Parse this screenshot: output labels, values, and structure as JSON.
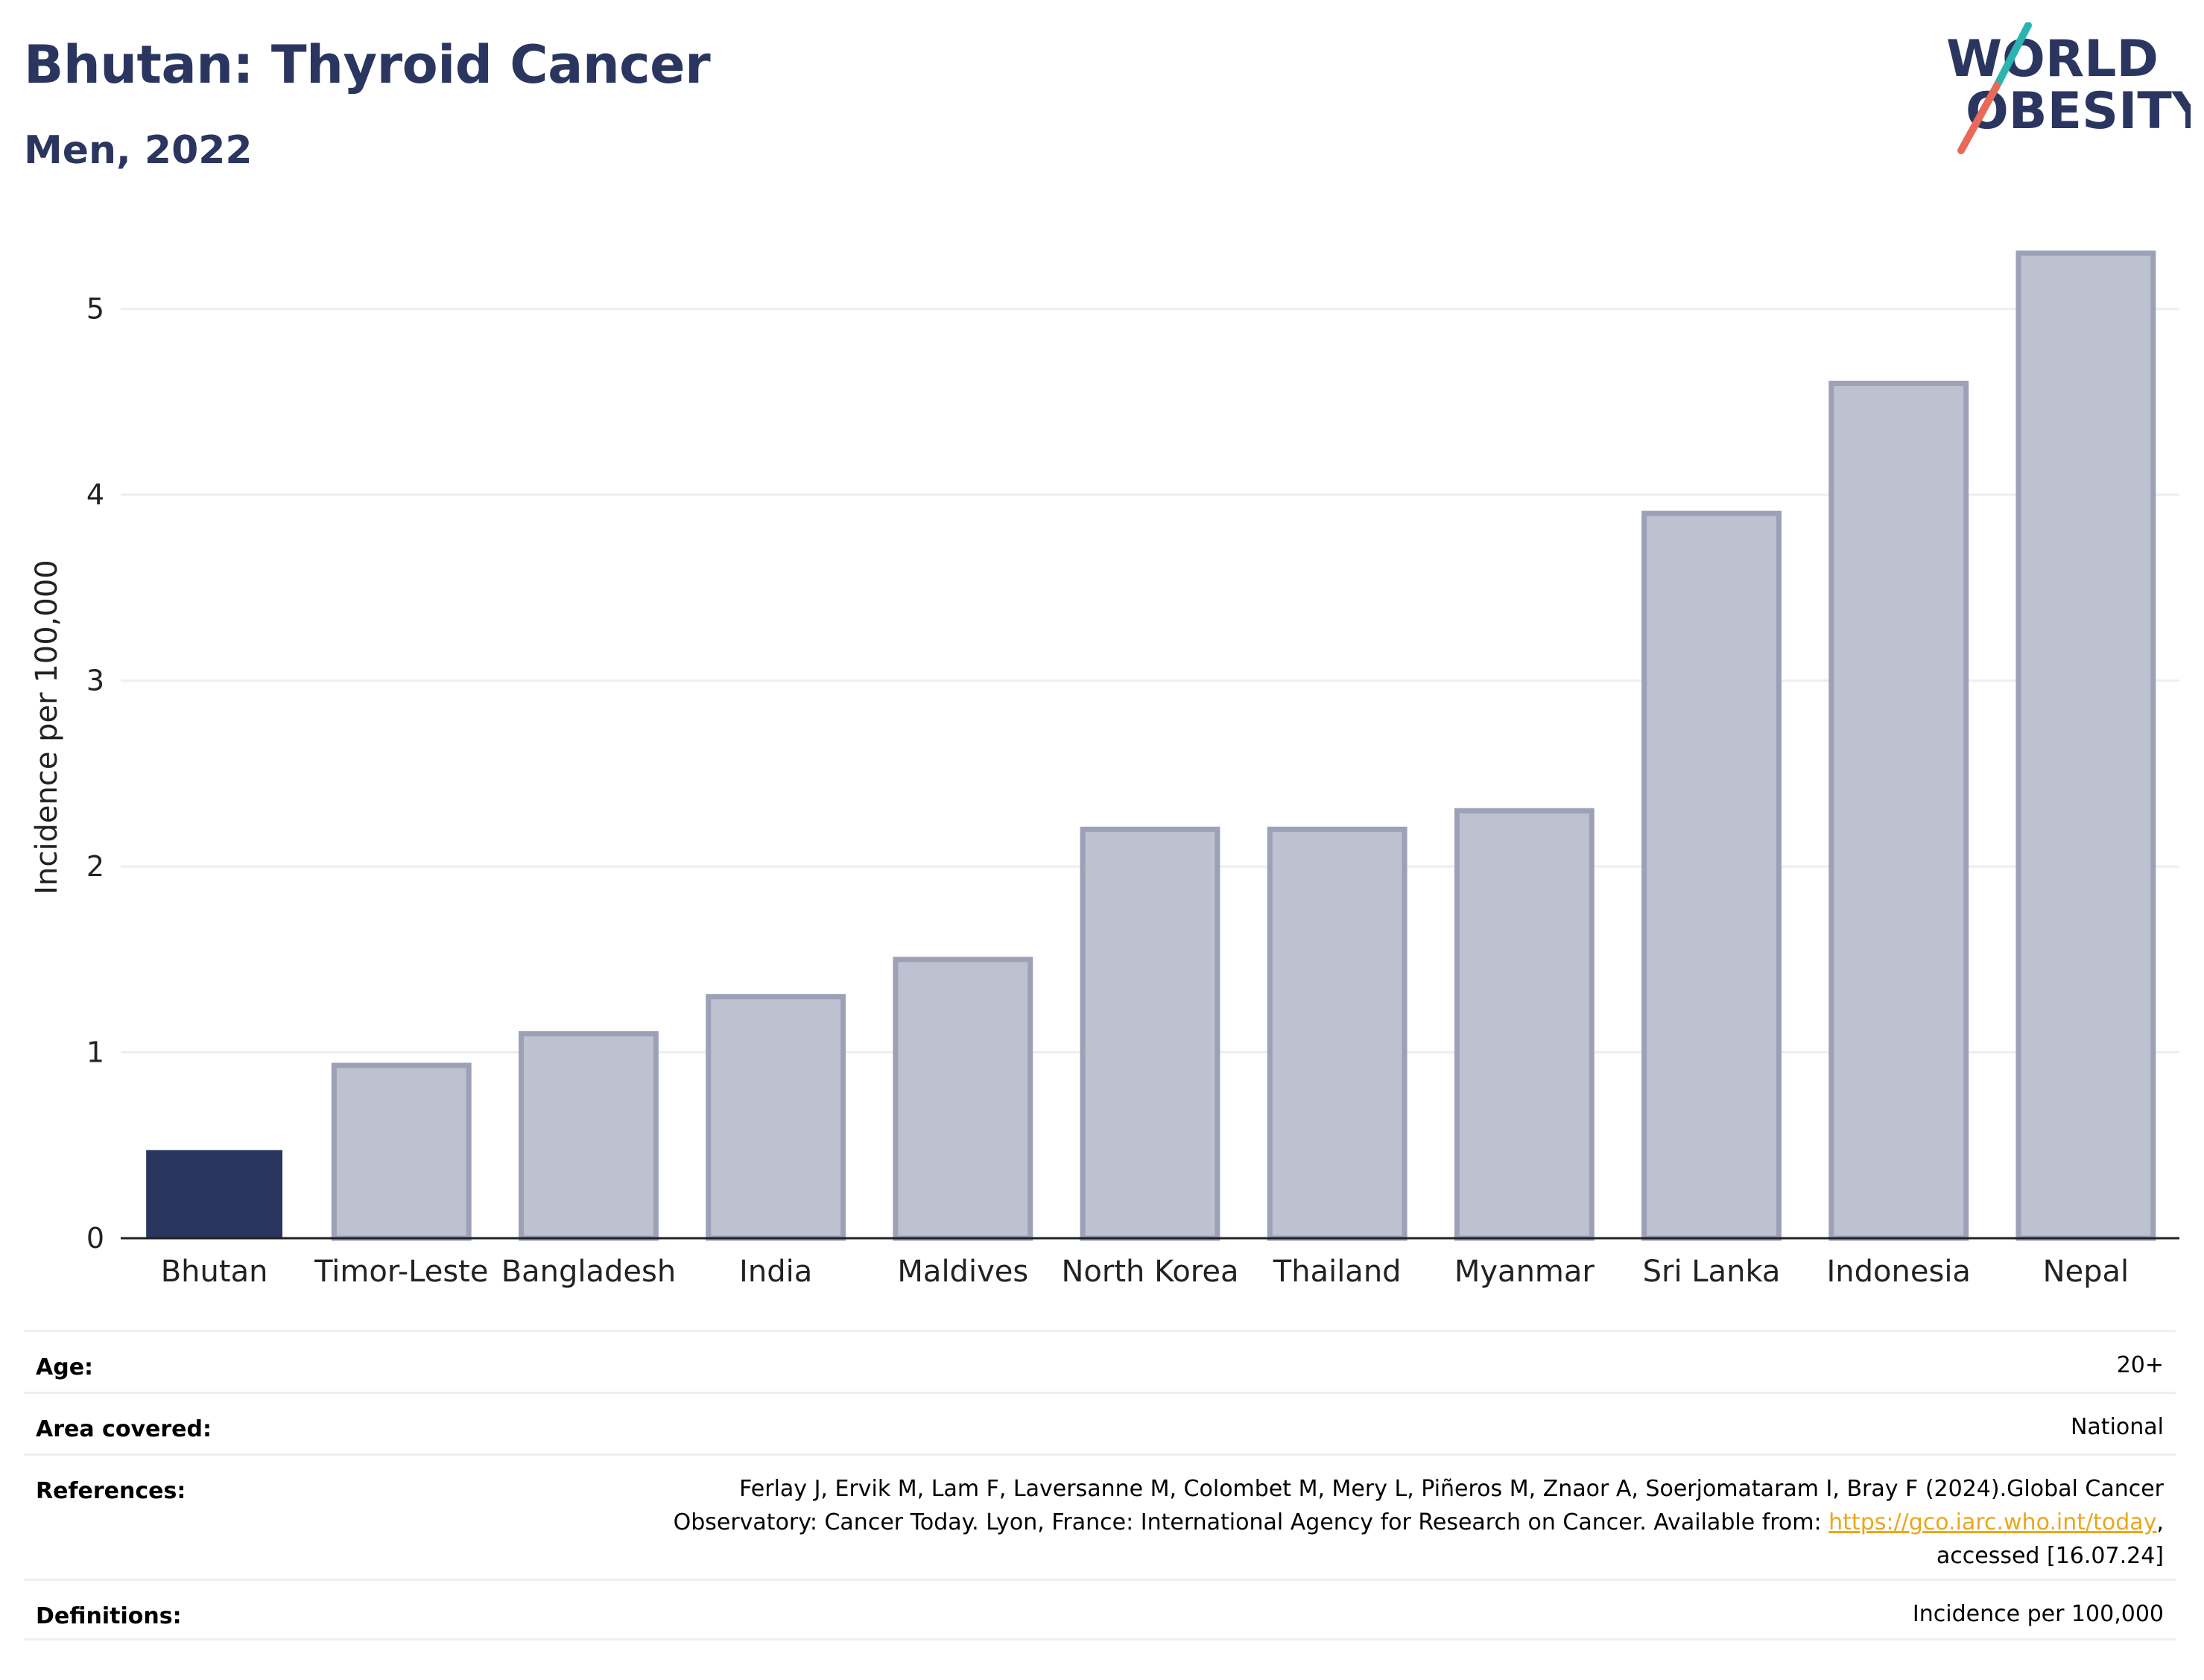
{
  "header": {
    "title": "Bhutan: Thyroid Cancer",
    "subtitle": "Men, 2022"
  },
  "logo": {
    "line1": "WORLD",
    "line2": "OBESITY",
    "colors": {
      "text": "#2b3660",
      "slash_top": "#2bb3b1",
      "slash_bottom": "#e8695a"
    }
  },
  "chart_data": {
    "type": "bar",
    "categories": [
      "Bhutan",
      "Timor-Leste",
      "Bangladesh",
      "India",
      "Maldives",
      "North Korea",
      "Thailand",
      "Myanmar",
      "Sri Lanka",
      "Indonesia",
      "Nepal"
    ],
    "values": [
      0.47,
      0.93,
      1.1,
      1.3,
      1.5,
      2.2,
      2.2,
      2.3,
      3.9,
      4.6,
      5.3
    ],
    "highlight": "Bhutan",
    "ylabel": "Incidence per 100,000",
    "xlabel": "",
    "ylim": [
      0,
      5.5
    ],
    "yticks": [
      0,
      1,
      2,
      3,
      4,
      5
    ],
    "grid": true,
    "colors": {
      "highlight": "#2b3660",
      "bar_fill": "#bec1cf",
      "bar_stroke": "#9ca1b8",
      "grid": "#eceef3",
      "axis": "#222222"
    }
  },
  "meta": {
    "age": {
      "label": "Age:",
      "value": "20+"
    },
    "area": {
      "label": "Area covered:",
      "value": "National"
    },
    "references": {
      "label": "References:",
      "line1": "Ferlay J, Ervik M, Lam F, Laversanne M, Colombet M, Mery L, Piñeros M, Znaor A, Soerjomataram I, Bray F (2024).Global Cancer",
      "line2_pre": "Observatory: Cancer Today. Lyon, France: International Agency for Research on Cancer. Available from: ",
      "link": "https://gco.iarc.who.int/today",
      "line2_post": ",",
      "line3": "accessed [16.07.24]"
    },
    "definitions": {
      "label": "Definitions:",
      "value": "Incidence per 100,000"
    }
  }
}
